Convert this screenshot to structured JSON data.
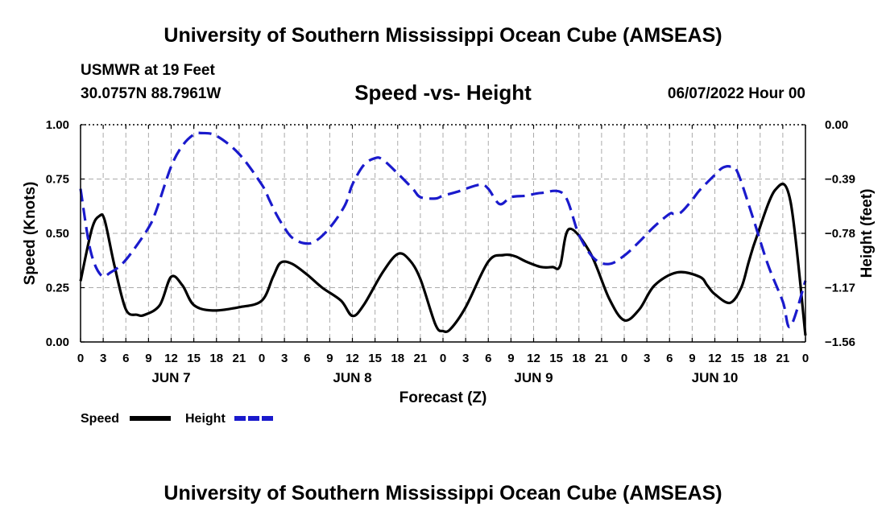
{
  "header": {
    "title": "University of Southern Mississippi Ocean Cube (AMSEAS)",
    "station": "USMWR at 19 Feet",
    "coords": "30.0757N  88.7961W",
    "subtitle": "Speed -vs- Height",
    "datetime": "06/07/2022 Hour 00"
  },
  "footer": {
    "title": "University of Southern Mississippi Ocean Cube (AMSEAS)"
  },
  "colors": {
    "speed": "#000000",
    "height": "#1a1acc",
    "grid": "#aaaaaa"
  },
  "chart_data": {
    "type": "line",
    "xlabel": "Forecast (Z)",
    "ylabel": "Speed (Knots)",
    "y2label": "Height (feet)",
    "xlim": [
      0,
      96
    ],
    "ylim": [
      0,
      1
    ],
    "y2lim": [
      -1.56,
      0
    ],
    "yticks": [
      0,
      0.25,
      0.5,
      0.75,
      1
    ],
    "ytick_labels": [
      "0.00",
      "0.25",
      "0.50",
      "0.75",
      "1.00"
    ],
    "y2ticks": [
      0,
      -0.39,
      -0.78,
      -1.17,
      -1.56
    ],
    "y2tick_labels": [
      "0.00",
      "−0.39",
      "−0.78",
      "−1.17",
      "−1.56"
    ],
    "xticks": [
      0,
      3,
      6,
      9,
      12,
      15,
      18,
      21,
      24,
      27,
      30,
      33,
      36,
      39,
      42,
      45,
      48,
      51,
      54,
      57,
      60,
      63,
      66,
      69,
      72,
      75,
      78,
      81,
      84,
      87,
      90,
      93,
      96
    ],
    "xtick_labels": [
      "0",
      "3",
      "6",
      "9",
      "12",
      "15",
      "18",
      "21",
      "0",
      "3",
      "6",
      "9",
      "12",
      "15",
      "18",
      "21",
      "0",
      "3",
      "6",
      "9",
      "12",
      "15",
      "18",
      "21",
      "0",
      "3",
      "6",
      "9",
      "12",
      "15",
      "18",
      "21",
      "0"
    ],
    "day_labels": [
      {
        "label": "JUN 7",
        "x": 12
      },
      {
        "label": "JUN 8",
        "x": 36
      },
      {
        "label": "JUN 9",
        "x": 60
      },
      {
        "label": "JUN 10",
        "x": 84
      }
    ],
    "series": [
      {
        "name": "Speed",
        "axis": "left",
        "style": "solid",
        "x": [
          0,
          1.5,
          2.5,
          3.2,
          4.5,
          6,
          7.5,
          8.5,
          10.5,
          12,
          13.5,
          15,
          17.5,
          21,
          24,
          25.5,
          26.5,
          28,
          30,
          32,
          34.5,
          36,
          37.5,
          40,
          42,
          43.5,
          45,
          47,
          48,
          49,
          51,
          54,
          56,
          57.5,
          59,
          61,
          62.5,
          63.5,
          64.7,
          67.5,
          70,
          72,
          74,
          76,
          79,
          82,
          83,
          84,
          86,
          87.5,
          88.5,
          89.5,
          92,
          94,
          96
        ],
        "values": [
          0.28,
          0.52,
          0.58,
          0.56,
          0.35,
          0.15,
          0.125,
          0.125,
          0.17,
          0.3,
          0.26,
          0.17,
          0.145,
          0.16,
          0.19,
          0.3,
          0.365,
          0.36,
          0.31,
          0.25,
          0.19,
          0.12,
          0.17,
          0.32,
          0.405,
          0.38,
          0.29,
          0.08,
          0.05,
          0.06,
          0.16,
          0.37,
          0.4,
          0.395,
          0.37,
          0.345,
          0.345,
          0.35,
          0.52,
          0.41,
          0.2,
          0.1,
          0.15,
          0.26,
          0.32,
          0.3,
          0.26,
          0.22,
          0.18,
          0.25,
          0.37,
          0.48,
          0.7,
          0.65,
          0.03
        ]
      },
      {
        "name": "Height",
        "axis": "right",
        "style": "dashed",
        "x": [
          0,
          1.3,
          2.7,
          4,
          5.5,
          7,
          9,
          10,
          12,
          13.5,
          15,
          16,
          18,
          21,
          24,
          25,
          26,
          27,
          28,
          29.5,
          31,
          33,
          35,
          36,
          37.5,
          39,
          40,
          42,
          44,
          45,
          47,
          48,
          50,
          51,
          53,
          54,
          55.5,
          57,
          59,
          61,
          64,
          66,
          68,
          70,
          72,
          74,
          76,
          78,
          78.5,
          79.5,
          81,
          82,
          84,
          85,
          86,
          87,
          89,
          91,
          93,
          94,
          96
        ],
        "values": [
          -0.46,
          -0.9,
          -1.08,
          -1.06,
          -1.0,
          -0.9,
          -0.74,
          -0.62,
          -0.3,
          -0.15,
          -0.07,
          -0.06,
          -0.08,
          -0.21,
          -0.43,
          -0.54,
          -0.65,
          -0.74,
          -0.81,
          -0.85,
          -0.84,
          -0.74,
          -0.58,
          -0.43,
          -0.29,
          -0.24,
          -0.25,
          -0.35,
          -0.46,
          -0.52,
          -0.53,
          -0.51,
          -0.48,
          -0.46,
          -0.43,
          -0.46,
          -0.57,
          -0.52,
          -0.51,
          -0.49,
          -0.5,
          -0.79,
          -0.96,
          -1.0,
          -0.94,
          -0.84,
          -0.73,
          -0.64,
          -0.64,
          -0.63,
          -0.54,
          -0.47,
          -0.36,
          -0.31,
          -0.3,
          -0.34,
          -0.66,
          -1.0,
          -1.27,
          -1.45,
          -1.12
        ]
      }
    ],
    "legend": [
      {
        "label": "Speed",
        "series": "Speed"
      },
      {
        "label": "Height",
        "series": "Height"
      }
    ]
  }
}
